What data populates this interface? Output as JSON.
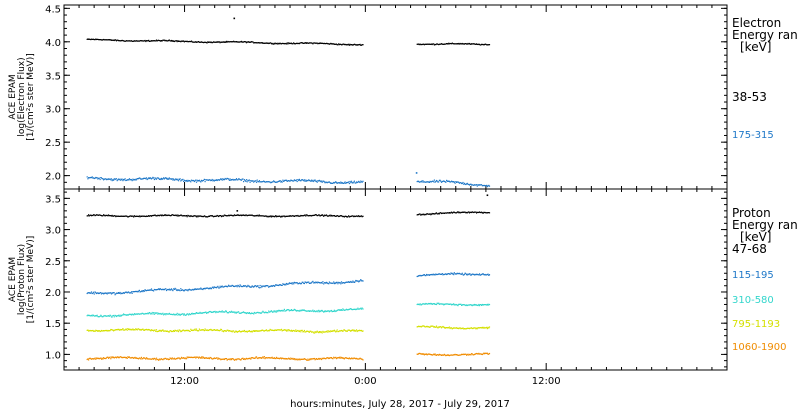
{
  "chart_data": [
    {
      "type": "scatter",
      "ylabel_lines": [
        "ACE EPAM",
        "log(Electron Flux)",
        "[1/(cm²s ster MeV)]"
      ],
      "ylim": [
        1.8,
        4.55
      ],
      "yticks": [
        2.0,
        2.5,
        3.0,
        3.5,
        4.0,
        4.5
      ],
      "yticklabels": [
        "2.0",
        "2.5",
        "3.0",
        "3.5",
        "4.0",
        "4.5"
      ],
      "legend_title_lines": [
        "Electron",
        "Energy ran",
        "[keV]"
      ],
      "series": [
        {
          "name": "38-53",
          "color": "#000000",
          "segments": [
            {
              "t0": 5.5,
              "t1": 23.8,
              "y0": 4.03,
              "y1": 3.96,
              "noise": 0.012
            },
            {
              "t0": 27.4,
              "t1": 32.2,
              "y0": 3.97,
              "y1": 3.96,
              "noise": 0.012
            }
          ],
          "outliers": [
            {
              "t": 15.3,
              "y": 4.35
            }
          ]
        },
        {
          "name": "175-315",
          "color": "#1f78c8",
          "segments": [
            {
              "t0": 5.5,
              "t1": 23.8,
              "y0": 1.96,
              "y1": 1.9,
              "noise": 0.025
            },
            {
              "t0": 27.4,
              "t1": 32.2,
              "y0": 1.92,
              "y1": 1.86,
              "noise": 0.025
            }
          ],
          "outliers": [
            {
              "t": 27.4,
              "y": 2.04
            }
          ]
        }
      ]
    },
    {
      "type": "scatter",
      "ylabel_lines": [
        "ACE EPAM",
        "log(Proton Flux)",
        "[1/(cm²s ster MeV)]"
      ],
      "ylim": [
        0.75,
        3.65
      ],
      "yticks": [
        1.0,
        1.5,
        2.0,
        2.5,
        3.0,
        3.5
      ],
      "yticklabels": [
        "1.0",
        "1.5",
        "2.0",
        "2.5",
        "3.0",
        "3.5"
      ],
      "legend_title_lines": [
        "Proton",
        "Energy ran",
        "[keV]"
      ],
      "series": [
        {
          "name": "47-68",
          "color": "#000000",
          "segments": [
            {
              "t0": 5.5,
              "t1": 23.8,
              "y0": 3.22,
              "y1": 3.22,
              "noise": 0.015
            },
            {
              "t0": 27.4,
              "t1": 32.2,
              "y0": 3.25,
              "y1": 3.28,
              "noise": 0.015
            }
          ],
          "outliers": [
            {
              "t": 15.5,
              "y": 3.3
            },
            {
              "t": 32.1,
              "y": 3.55
            }
          ]
        },
        {
          "name": "115-195",
          "color": "#1f78c8",
          "segments": [
            {
              "t0": 5.5,
              "t1": 23.8,
              "y0": 1.97,
              "y1": 2.18,
              "noise": 0.025
            },
            {
              "t0": 27.4,
              "t1": 32.2,
              "y0": 2.27,
              "y1": 2.29,
              "noise": 0.02
            }
          ],
          "outliers": []
        },
        {
          "name": "310-580",
          "color": "#33d6cc",
          "segments": [
            {
              "t0": 5.5,
              "t1": 23.8,
              "y0": 1.62,
              "y1": 1.72,
              "noise": 0.022
            },
            {
              "t0": 27.4,
              "t1": 32.2,
              "y0": 1.8,
              "y1": 1.8,
              "noise": 0.018
            }
          ],
          "outliers": []
        },
        {
          "name": "795-1193",
          "color": "#d4e000",
          "segments": [
            {
              "t0": 5.5,
              "t1": 23.8,
              "y0": 1.39,
              "y1": 1.37,
              "noise": 0.022
            },
            {
              "t0": 27.4,
              "t1": 32.2,
              "y0": 1.44,
              "y1": 1.42,
              "noise": 0.018
            }
          ],
          "outliers": []
        },
        {
          "name": "1060-1900",
          "color": "#f08c00",
          "segments": [
            {
              "t0": 5.5,
              "t1": 23.8,
              "y0": 0.94,
              "y1": 0.93,
              "noise": 0.022
            },
            {
              "t0": 27.4,
              "t1": 32.2,
              "y0": 1.0,
              "y1": 1.0,
              "noise": 0.018
            }
          ],
          "outliers": []
        }
      ]
    }
  ],
  "x_axis": {
    "xlabel": "hours:minutes, July 28, 2017 - July 29, 2017",
    "xlim_hours": [
      4,
      48
    ],
    "major_ticks": [
      12,
      24,
      36
    ],
    "major_labels": [
      "12:00",
      "0:00",
      "12:00"
    ],
    "minor_step": 1
  }
}
